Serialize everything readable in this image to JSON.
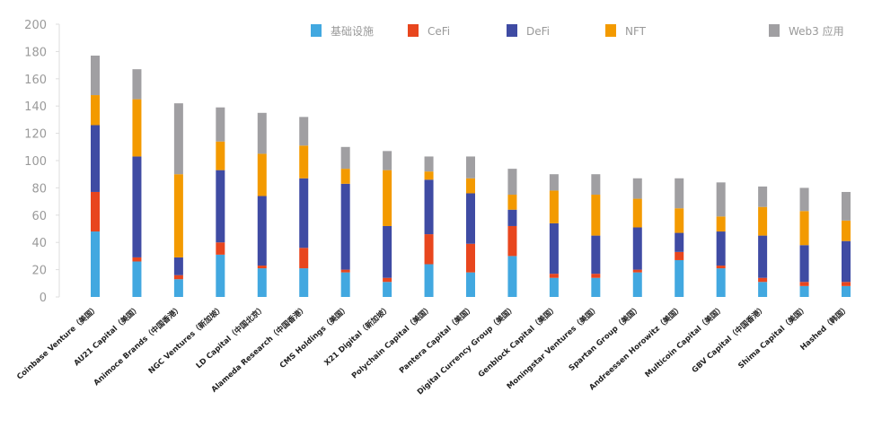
{
  "chart_data": {
    "type": "bar",
    "stacked": true,
    "title": "",
    "xlabel": "",
    "ylabel": "",
    "ylim": [
      0,
      200
    ],
    "yticks": [
      0,
      20,
      40,
      60,
      80,
      100,
      120,
      140,
      160,
      180,
      200
    ],
    "grid": false,
    "legend_position": "top-right",
    "categories": [
      "Coinbase Venture（美国）",
      "AU21 Capital（美国）",
      "Animoce Brands（中国香港）",
      "NGC Ventures（新加坡）",
      "LD Capital（中国北京）",
      "Alameda Research（中国香港）",
      "CMS Holdings（美国）",
      "X21 Digital（新加坡）",
      "Polychain Capital（美国）",
      "Pantera Capital（美国）",
      "Digital Currency Group（美国）",
      "Genblock Capital（美国）",
      "Moningstar Ventures（美国）",
      "Spartan Group（美国）",
      "Andreessen Horowitz（美国）",
      "Multicoin Capital（美国）",
      "GBV Capital（中国香港）",
      "Shima Capital（美国）",
      "Hashed（韩国）"
    ],
    "series": [
      {
        "name": "基础设施",
        "color": "#42a8e0",
        "values": [
          48,
          26,
          13,
          31,
          21,
          21,
          18,
          11,
          24,
          18,
          30,
          14,
          14,
          18,
          27,
          21,
          11,
          8,
          8
        ]
      },
      {
        "name": "CeFi",
        "color": "#e8461e",
        "values": [
          29,
          3,
          3,
          9,
          2,
          15,
          2,
          3,
          22,
          21,
          22,
          3,
          3,
          2,
          6,
          2,
          3,
          3,
          3
        ]
      },
      {
        "name": "DeFi",
        "color": "#3f4ba3",
        "values": [
          49,
          74,
          13,
          53,
          51,
          51,
          63,
          38,
          40,
          37,
          12,
          37,
          28,
          31,
          14,
          25,
          31,
          27,
          30
        ]
      },
      {
        "name": "NFT",
        "color": "#f39a00",
        "values": [
          22,
          42,
          61,
          21,
          31,
          24,
          11,
          41,
          6,
          11,
          11,
          24,
          30,
          21,
          18,
          11,
          21,
          25,
          15
        ]
      },
      {
        "name": "Web3 应用",
        "color": "#a09fa2",
        "values": [
          29,
          22,
          52,
          25,
          30,
          21,
          16,
          14,
          11,
          16,
          19,
          12,
          15,
          15,
          22,
          25,
          15,
          17,
          21
        ]
      }
    ]
  }
}
